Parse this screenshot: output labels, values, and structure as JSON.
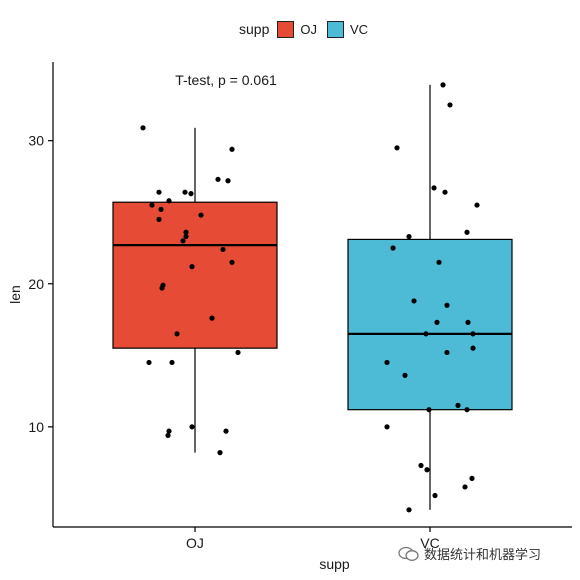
{
  "legend": {
    "title": "supp",
    "items": [
      {
        "label": "OJ",
        "color": "#E64B35"
      },
      {
        "label": "VC",
        "color": "#4DBBD5"
      }
    ]
  },
  "watermark": {
    "text": "数据统计和机器学习",
    "icon": "wechat-icon"
  },
  "chart_data": {
    "type": "box",
    "xlabel": "supp",
    "ylabel": "len",
    "categories": [
      "OJ",
      "VC"
    ],
    "ylim": [
      3.0,
      35.5
    ],
    "yticks": [
      10,
      20,
      30
    ],
    "grid": false,
    "legend_position": "top",
    "annotation": "T-test, p = 0.061",
    "series": [
      {
        "name": "OJ",
        "color": "#E64B35",
        "box": {
          "whisker_low": 8.2,
          "q1": 15.5,
          "median": 22.7,
          "q3": 25.7,
          "whisker_high": 30.9
        },
        "points": [
          30.9,
          29.4,
          27.3,
          27.2,
          26.4,
          26.4,
          26.3,
          25.8,
          25.5,
          25.2,
          24.8,
          24.5,
          23.6,
          23.3,
          23.0,
          22.4,
          21.5,
          21.2,
          19.9,
          19.7,
          17.6,
          16.5,
          15.2,
          14.5,
          14.5,
          10.0,
          9.7,
          9.7,
          9.4,
          8.2
        ]
      },
      {
        "name": "VC",
        "color": "#4DBBD5",
        "box": {
          "whisker_low": 4.2,
          "q1": 11.2,
          "median": 16.5,
          "q3": 23.1,
          "whisker_high": 33.9
        },
        "points": [
          33.9,
          32.5,
          29.5,
          26.7,
          26.4,
          25.5,
          23.6,
          23.3,
          22.5,
          21.5,
          18.8,
          18.5,
          17.3,
          17.3,
          16.5,
          16.5,
          15.5,
          15.2,
          14.5,
          13.6,
          11.5,
          11.2,
          11.2,
          10.0,
          7.3,
          7.0,
          6.4,
          5.8,
          5.2,
          4.2
        ]
      }
    ]
  }
}
